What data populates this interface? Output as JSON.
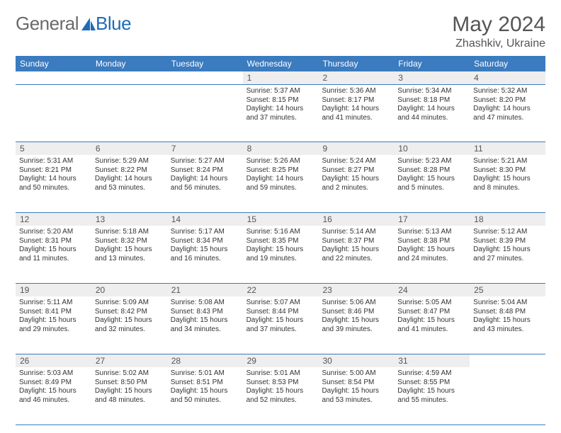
{
  "brand": {
    "part1": "General",
    "part2": "Blue"
  },
  "colors": {
    "accent": "#3b7bbf",
    "logo_blue": "#1e6bb8",
    "header_bg": "#3b7bbf",
    "header_text": "#ffffff",
    "daynum_bg": "#eeeeee",
    "text": "#333333",
    "muted": "#555555",
    "page_bg": "#ffffff"
  },
  "title": "May 2024",
  "location": "Zhashkiv, Ukraine",
  "weekdays": [
    "Sunday",
    "Monday",
    "Tuesday",
    "Wednesday",
    "Thursday",
    "Friday",
    "Saturday"
  ],
  "weeks": [
    {
      "nums": [
        "",
        "",
        "",
        "1",
        "2",
        "3",
        "4"
      ],
      "cells": [
        null,
        null,
        null,
        {
          "sunrise": "Sunrise: 5:37 AM",
          "sunset": "Sunset: 8:15 PM",
          "day1": "Daylight: 14 hours",
          "day2": "and 37 minutes."
        },
        {
          "sunrise": "Sunrise: 5:36 AM",
          "sunset": "Sunset: 8:17 PM",
          "day1": "Daylight: 14 hours",
          "day2": "and 41 minutes."
        },
        {
          "sunrise": "Sunrise: 5:34 AM",
          "sunset": "Sunset: 8:18 PM",
          "day1": "Daylight: 14 hours",
          "day2": "and 44 minutes."
        },
        {
          "sunrise": "Sunrise: 5:32 AM",
          "sunset": "Sunset: 8:20 PM",
          "day1": "Daylight: 14 hours",
          "day2": "and 47 minutes."
        }
      ]
    },
    {
      "nums": [
        "5",
        "6",
        "7",
        "8",
        "9",
        "10",
        "11"
      ],
      "cells": [
        {
          "sunrise": "Sunrise: 5:31 AM",
          "sunset": "Sunset: 8:21 PM",
          "day1": "Daylight: 14 hours",
          "day2": "and 50 minutes."
        },
        {
          "sunrise": "Sunrise: 5:29 AM",
          "sunset": "Sunset: 8:22 PM",
          "day1": "Daylight: 14 hours",
          "day2": "and 53 minutes."
        },
        {
          "sunrise": "Sunrise: 5:27 AM",
          "sunset": "Sunset: 8:24 PM",
          "day1": "Daylight: 14 hours",
          "day2": "and 56 minutes."
        },
        {
          "sunrise": "Sunrise: 5:26 AM",
          "sunset": "Sunset: 8:25 PM",
          "day1": "Daylight: 14 hours",
          "day2": "and 59 minutes."
        },
        {
          "sunrise": "Sunrise: 5:24 AM",
          "sunset": "Sunset: 8:27 PM",
          "day1": "Daylight: 15 hours",
          "day2": "and 2 minutes."
        },
        {
          "sunrise": "Sunrise: 5:23 AM",
          "sunset": "Sunset: 8:28 PM",
          "day1": "Daylight: 15 hours",
          "day2": "and 5 minutes."
        },
        {
          "sunrise": "Sunrise: 5:21 AM",
          "sunset": "Sunset: 8:30 PM",
          "day1": "Daylight: 15 hours",
          "day2": "and 8 minutes."
        }
      ]
    },
    {
      "nums": [
        "12",
        "13",
        "14",
        "15",
        "16",
        "17",
        "18"
      ],
      "cells": [
        {
          "sunrise": "Sunrise: 5:20 AM",
          "sunset": "Sunset: 8:31 PM",
          "day1": "Daylight: 15 hours",
          "day2": "and 11 minutes."
        },
        {
          "sunrise": "Sunrise: 5:18 AM",
          "sunset": "Sunset: 8:32 PM",
          "day1": "Daylight: 15 hours",
          "day2": "and 13 minutes."
        },
        {
          "sunrise": "Sunrise: 5:17 AM",
          "sunset": "Sunset: 8:34 PM",
          "day1": "Daylight: 15 hours",
          "day2": "and 16 minutes."
        },
        {
          "sunrise": "Sunrise: 5:16 AM",
          "sunset": "Sunset: 8:35 PM",
          "day1": "Daylight: 15 hours",
          "day2": "and 19 minutes."
        },
        {
          "sunrise": "Sunrise: 5:14 AM",
          "sunset": "Sunset: 8:37 PM",
          "day1": "Daylight: 15 hours",
          "day2": "and 22 minutes."
        },
        {
          "sunrise": "Sunrise: 5:13 AM",
          "sunset": "Sunset: 8:38 PM",
          "day1": "Daylight: 15 hours",
          "day2": "and 24 minutes."
        },
        {
          "sunrise": "Sunrise: 5:12 AM",
          "sunset": "Sunset: 8:39 PM",
          "day1": "Daylight: 15 hours",
          "day2": "and 27 minutes."
        }
      ]
    },
    {
      "nums": [
        "19",
        "20",
        "21",
        "22",
        "23",
        "24",
        "25"
      ],
      "cells": [
        {
          "sunrise": "Sunrise: 5:11 AM",
          "sunset": "Sunset: 8:41 PM",
          "day1": "Daylight: 15 hours",
          "day2": "and 29 minutes."
        },
        {
          "sunrise": "Sunrise: 5:09 AM",
          "sunset": "Sunset: 8:42 PM",
          "day1": "Daylight: 15 hours",
          "day2": "and 32 minutes."
        },
        {
          "sunrise": "Sunrise: 5:08 AM",
          "sunset": "Sunset: 8:43 PM",
          "day1": "Daylight: 15 hours",
          "day2": "and 34 minutes."
        },
        {
          "sunrise": "Sunrise: 5:07 AM",
          "sunset": "Sunset: 8:44 PM",
          "day1": "Daylight: 15 hours",
          "day2": "and 37 minutes."
        },
        {
          "sunrise": "Sunrise: 5:06 AM",
          "sunset": "Sunset: 8:46 PM",
          "day1": "Daylight: 15 hours",
          "day2": "and 39 minutes."
        },
        {
          "sunrise": "Sunrise: 5:05 AM",
          "sunset": "Sunset: 8:47 PM",
          "day1": "Daylight: 15 hours",
          "day2": "and 41 minutes."
        },
        {
          "sunrise": "Sunrise: 5:04 AM",
          "sunset": "Sunset: 8:48 PM",
          "day1": "Daylight: 15 hours",
          "day2": "and 43 minutes."
        }
      ]
    },
    {
      "nums": [
        "26",
        "27",
        "28",
        "29",
        "30",
        "31",
        ""
      ],
      "cells": [
        {
          "sunrise": "Sunrise: 5:03 AM",
          "sunset": "Sunset: 8:49 PM",
          "day1": "Daylight: 15 hours",
          "day2": "and 46 minutes."
        },
        {
          "sunrise": "Sunrise: 5:02 AM",
          "sunset": "Sunset: 8:50 PM",
          "day1": "Daylight: 15 hours",
          "day2": "and 48 minutes."
        },
        {
          "sunrise": "Sunrise: 5:01 AM",
          "sunset": "Sunset: 8:51 PM",
          "day1": "Daylight: 15 hours",
          "day2": "and 50 minutes."
        },
        {
          "sunrise": "Sunrise: 5:01 AM",
          "sunset": "Sunset: 8:53 PM",
          "day1": "Daylight: 15 hours",
          "day2": "and 52 minutes."
        },
        {
          "sunrise": "Sunrise: 5:00 AM",
          "sunset": "Sunset: 8:54 PM",
          "day1": "Daylight: 15 hours",
          "day2": "and 53 minutes."
        },
        {
          "sunrise": "Sunrise: 4:59 AM",
          "sunset": "Sunset: 8:55 PM",
          "day1": "Daylight: 15 hours",
          "day2": "and 55 minutes."
        },
        null
      ]
    }
  ]
}
